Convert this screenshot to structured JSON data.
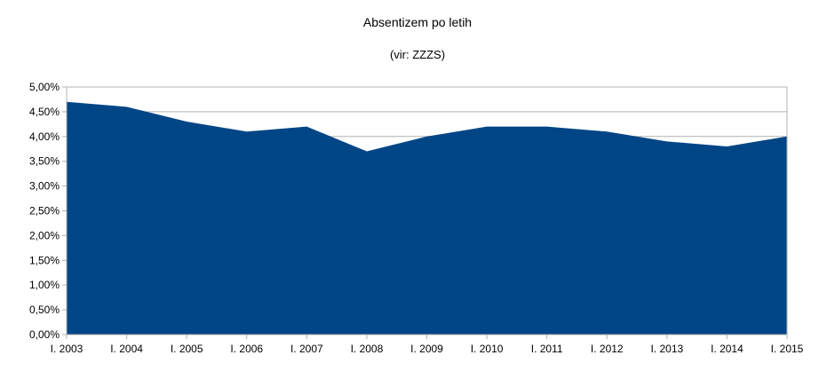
{
  "chart_data": {
    "type": "area",
    "title": "Absentizem po letih",
    "subtitle": "(vir: ZZZS)",
    "xlabel": "",
    "ylabel": "",
    "categories": [
      "I. 2003",
      "I. 2004",
      "I. 2005",
      "I. 2006",
      "I. 2007",
      "I. 2008",
      "I. 2009",
      "I. 2010",
      "I. 2011",
      "I. 2012",
      "I. 2013",
      "I. 2014",
      "I. 2015"
    ],
    "values": [
      4.7,
      4.6,
      4.3,
      4.1,
      4.2,
      3.7,
      4.0,
      4.2,
      4.2,
      4.1,
      3.9,
      3.8,
      4.0
    ],
    "unit": "%",
    "ylim": [
      0,
      5
    ],
    "yticks": [
      "0,00%",
      "0,50%",
      "1,00%",
      "1,50%",
      "2,00%",
      "2,50%",
      "3,00%",
      "3,50%",
      "4,00%",
      "4,50%",
      "5,00%"
    ],
    "grid": true,
    "legend": "none",
    "color": "#004586"
  }
}
